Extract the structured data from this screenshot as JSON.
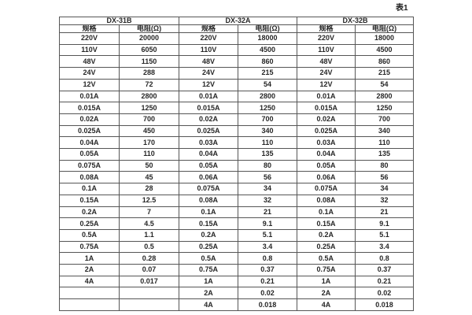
{
  "page": {
    "table_label": "表1"
  },
  "table": {
    "groups": [
      {
        "name": "DX-31B"
      },
      {
        "name": "DX-32A"
      },
      {
        "name": "DX-32B"
      }
    ],
    "sub_headers": [
      "规格",
      "电阻(Ω)"
    ],
    "rows": [
      [
        "220V",
        "20000",
        "220V",
        "18000",
        "220V",
        "18000"
      ],
      [
        "110V",
        "6050",
        "110V",
        "4500",
        "110V",
        "4500"
      ],
      [
        "48V",
        "1150",
        "48V",
        "860",
        "48V",
        "860"
      ],
      [
        "24V",
        "288",
        "24V",
        "215",
        "24V",
        "215"
      ],
      [
        "12V",
        "72",
        "12V",
        "54",
        "12V",
        "54"
      ],
      [
        "0.01A",
        "2800",
        "0.01A",
        "2800",
        "0.01A",
        "2800"
      ],
      [
        "0.015A",
        "1250",
        "0.015A",
        "1250",
        "0.015A",
        "1250"
      ],
      [
        "0.02A",
        "700",
        "0.02A",
        "700",
        "0.02A",
        "700"
      ],
      [
        "0.025A",
        "450",
        "0.025A",
        "340",
        "0.025A",
        "340"
      ],
      [
        "0.04A",
        "170",
        "0.03A",
        "110",
        "0.03A",
        "110"
      ],
      [
        "0.05A",
        "110",
        "0.04A",
        "135",
        "0.04A",
        "135"
      ],
      [
        "0.075A",
        "50",
        "0.05A",
        "80",
        "0.05A",
        "80"
      ],
      [
        "0.08A",
        "45",
        "0.06A",
        "56",
        "0.06A",
        "56"
      ],
      [
        "0.1A",
        "28",
        "0.075A",
        "34",
        "0.075A",
        "34"
      ],
      [
        "0.15A",
        "12.5",
        "0.08A",
        "32",
        "0.08A",
        "32"
      ],
      [
        "0.2A",
        "7",
        "0.1A",
        "21",
        "0.1A",
        "21"
      ],
      [
        "0.25A",
        "4.5",
        "0.15A",
        "9.1",
        "0.15A",
        "9.1"
      ],
      [
        "0.5A",
        "1.1",
        "0.2A",
        "5.1",
        "0.2A",
        "5.1"
      ],
      [
        "0.75A",
        "0.5",
        "0.25A",
        "3.4",
        "0.25A",
        "3.4"
      ],
      [
        "1A",
        "0.28",
        "0.5A",
        "0.8",
        "0.5A",
        "0.8"
      ],
      [
        "2A",
        "0.07",
        "0.75A",
        "0.37",
        "0.75A",
        "0.37"
      ],
      [
        "4A",
        "0.017",
        "1A",
        "0.21",
        "1A",
        "0.21"
      ],
      [
        "",
        "",
        "2A",
        "0.02",
        "2A",
        "0.02"
      ],
      [
        "",
        "",
        "4A",
        "0.018",
        "4A",
        "0.018"
      ]
    ]
  }
}
